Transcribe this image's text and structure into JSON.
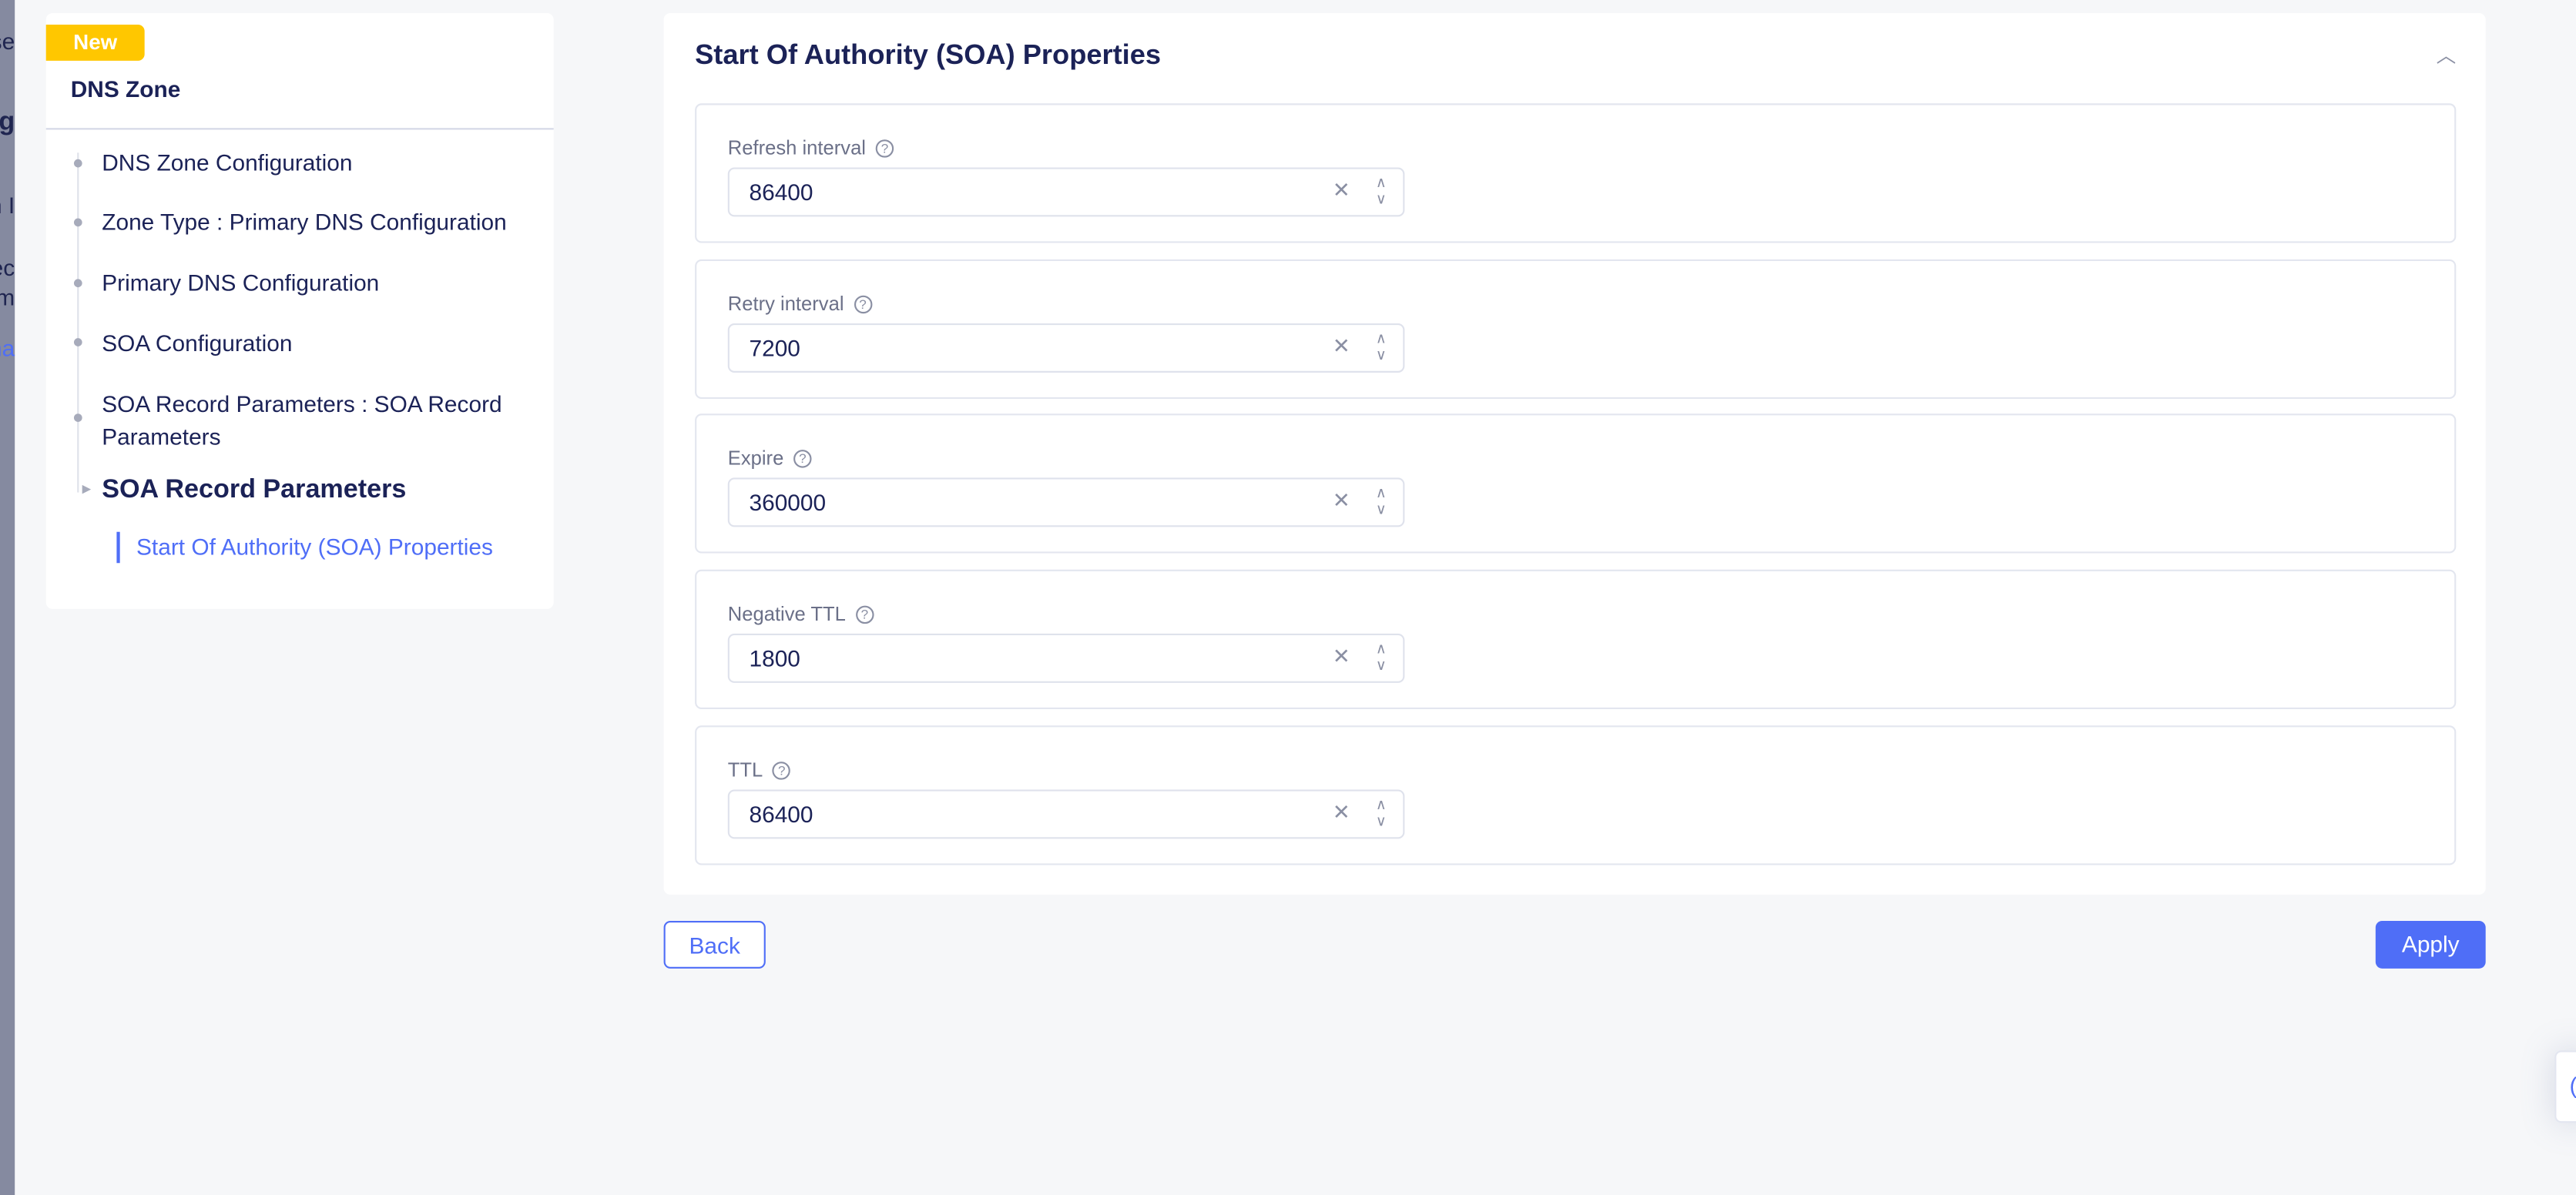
{
  "background_fragments": [
    "se",
    "ag",
    "n I",
    "ec",
    "m",
    "na"
  ],
  "sidebar": {
    "badge": "New",
    "title": "DNS Zone",
    "items": [
      {
        "label": "DNS Zone Configuration"
      },
      {
        "label": "Zone Type : Primary DNS Configuration"
      },
      {
        "label": "Primary DNS Configuration"
      },
      {
        "label": "SOA Configuration"
      },
      {
        "label": "SOA Record Parameters : SOA Record Parameters"
      }
    ],
    "current": "SOA Record Parameters",
    "current_sub": "Start Of Authority (SOA) Properties"
  },
  "main": {
    "title": "Start Of Authority (SOA) Properties",
    "fields": [
      {
        "label": "Refresh interval",
        "value": "86400"
      },
      {
        "label": "Retry interval",
        "value": "7200"
      },
      {
        "label": "Expire",
        "value": "360000"
      },
      {
        "label": "Negative TTL",
        "value": "1800"
      },
      {
        "label": "TTL",
        "value": "86400"
      }
    ]
  },
  "actions": {
    "back": "Back",
    "apply": "Apply"
  },
  "icons": {
    "help": "?",
    "clear": "✕",
    "up": "∧",
    "down": "∨",
    "collapse": "chevron-up"
  },
  "colors": {
    "accent": "#4f6ef7",
    "badge": "#ffc700",
    "text": "#1b2257"
  }
}
